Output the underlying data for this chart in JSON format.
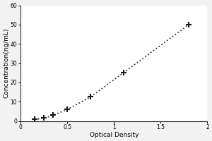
{
  "x_data": [
    0.15,
    0.25,
    0.35,
    0.5,
    0.75,
    1.1,
    1.8
  ],
  "y_data": [
    0.8,
    1.5,
    3.0,
    6.0,
    12.5,
    25.0,
    50.0
  ],
  "xlabel": "Optical Density",
  "ylabel": "Concentration(ng/mL)",
  "xlim": [
    0,
    2
  ],
  "ylim": [
    0,
    60
  ],
  "xticks": [
    0,
    0.5,
    1.0,
    1.5,
    2.0
  ],
  "xtick_labels": [
    "0",
    "0.5",
    "1",
    "1.5",
    "2"
  ],
  "yticks": [
    0,
    10,
    20,
    30,
    40,
    50,
    60
  ],
  "line_color": "#3a3a3a",
  "marker_color": "#1a1a1a",
  "marker": "+",
  "linestyle": "dotted",
  "linewidth": 1.3,
  "markersize": 6,
  "markeredgewidth": 1.5,
  "axis_label_fontsize": 6.5,
  "tick_fontsize": 5.5,
  "bg_color": "#ffffff",
  "fig_bg_color": "#f2f2f2"
}
